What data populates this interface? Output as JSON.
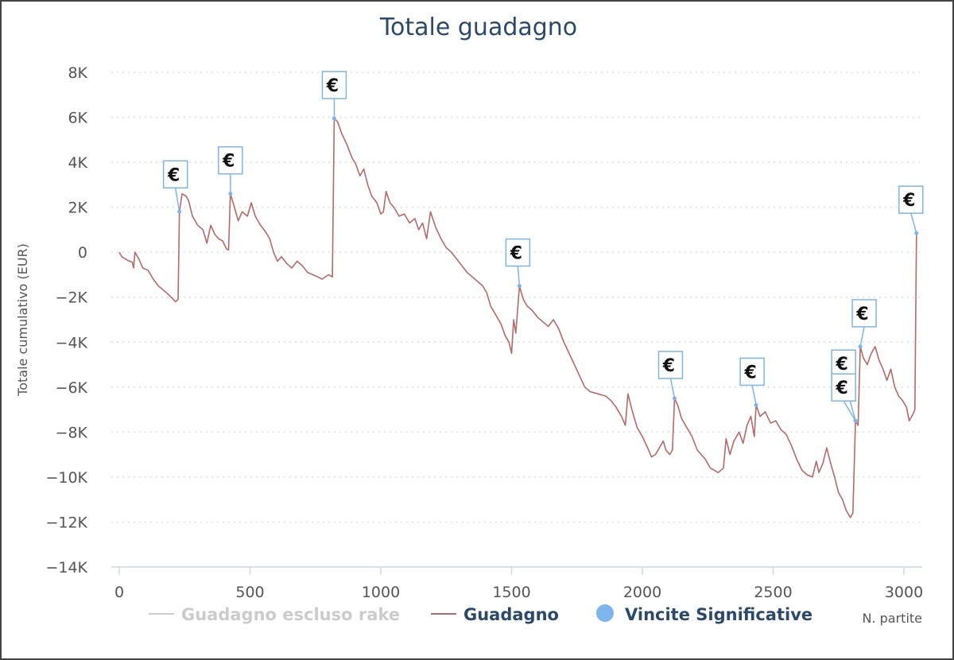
{
  "chart_data": {
    "type": "line",
    "title": "Totale guadagno",
    "xlabel": "N. partite",
    "ylabel": "Totale cumulativo (EUR)",
    "xlim": [
      0,
      3050
    ],
    "ylim": [
      -14000,
      8000
    ],
    "x_ticks": [
      0,
      500,
      1000,
      1500,
      2000,
      2500,
      3000
    ],
    "x_tick_labels": [
      "0",
      "500",
      "1000",
      "1500",
      "2000",
      "2500",
      "3000"
    ],
    "y_ticks": [
      8000,
      6000,
      4000,
      2000,
      0,
      -2000,
      -4000,
      -6000,
      -8000,
      -10000,
      -12000,
      -14000
    ],
    "y_tick_labels": [
      "8K",
      "6K",
      "4K",
      "2K",
      "0",
      "−2K",
      "−4K",
      "−6K",
      "−8K",
      "−10K",
      "−12K",
      "−14K"
    ],
    "grid": "horizontal-dotted",
    "legend_position": "bottom",
    "series": [
      {
        "name": "Guadagno escluso rake",
        "color": "#cccccc",
        "hidden": true,
        "points": []
      },
      {
        "name": "Guadagno",
        "color": "#b56a6a",
        "points": [
          [
            0,
            0
          ],
          [
            10,
            -200
          ],
          [
            30,
            -350
          ],
          [
            50,
            -450
          ],
          [
            55,
            -700
          ],
          [
            60,
            0
          ],
          [
            75,
            -300
          ],
          [
            90,
            -700
          ],
          [
            110,
            -800
          ],
          [
            130,
            -1200
          ],
          [
            150,
            -1500
          ],
          [
            170,
            -1700
          ],
          [
            190,
            -1900
          ],
          [
            215,
            -2200
          ],
          [
            225,
            -2100
          ],
          [
            230,
            1800
          ],
          [
            240,
            2600
          ],
          [
            255,
            2500
          ],
          [
            265,
            2300
          ],
          [
            280,
            1600
          ],
          [
            300,
            1200
          ],
          [
            320,
            1000
          ],
          [
            335,
            400
          ],
          [
            350,
            1200
          ],
          [
            365,
            800
          ],
          [
            380,
            600
          ],
          [
            395,
            500
          ],
          [
            410,
            150
          ],
          [
            418,
            100
          ],
          [
            425,
            2600
          ],
          [
            440,
            2000
          ],
          [
            455,
            1400
          ],
          [
            470,
            1800
          ],
          [
            490,
            1600
          ],
          [
            505,
            2200
          ],
          [
            520,
            1600
          ],
          [
            540,
            1200
          ],
          [
            560,
            900
          ],
          [
            575,
            600
          ],
          [
            590,
            0
          ],
          [
            605,
            -400
          ],
          [
            620,
            -200
          ],
          [
            640,
            -500
          ],
          [
            660,
            -700
          ],
          [
            680,
            -400
          ],
          [
            700,
            -600
          ],
          [
            720,
            -900
          ],
          [
            740,
            -1000
          ],
          [
            760,
            -1100
          ],
          [
            775,
            -1200
          ],
          [
            800,
            -1000
          ],
          [
            815,
            -1100
          ],
          [
            822,
            5950
          ],
          [
            835,
            5800
          ],
          [
            850,
            5300
          ],
          [
            870,
            4800
          ],
          [
            890,
            4200
          ],
          [
            905,
            3900
          ],
          [
            920,
            3400
          ],
          [
            935,
            3700
          ],
          [
            950,
            3000
          ],
          [
            965,
            2500
          ],
          [
            985,
            2200
          ],
          [
            1000,
            1700
          ],
          [
            1010,
            1800
          ],
          [
            1020,
            2700
          ],
          [
            1035,
            2200
          ],
          [
            1050,
            2000
          ],
          [
            1070,
            1600
          ],
          [
            1090,
            1700
          ],
          [
            1110,
            1300
          ],
          [
            1130,
            1500
          ],
          [
            1145,
            1000
          ],
          [
            1160,
            1300
          ],
          [
            1175,
            600
          ],
          [
            1190,
            1800
          ],
          [
            1210,
            1100
          ],
          [
            1230,
            600
          ],
          [
            1250,
            200
          ],
          [
            1270,
            0
          ],
          [
            1290,
            -300
          ],
          [
            1310,
            -600
          ],
          [
            1330,
            -900
          ],
          [
            1350,
            -1100
          ],
          [
            1370,
            -1300
          ],
          [
            1390,
            -1500
          ],
          [
            1405,
            -1800
          ],
          [
            1420,
            -2400
          ],
          [
            1440,
            -2800
          ],
          [
            1460,
            -3200
          ],
          [
            1475,
            -3700
          ],
          [
            1490,
            -4000
          ],
          [
            1500,
            -4500
          ],
          [
            1508,
            -3000
          ],
          [
            1516,
            -3600
          ],
          [
            1530,
            -1500
          ],
          [
            1545,
            -2100
          ],
          [
            1560,
            -2400
          ],
          [
            1580,
            -2600
          ],
          [
            1600,
            -2900
          ],
          [
            1620,
            -3100
          ],
          [
            1640,
            -3300
          ],
          [
            1660,
            -3000
          ],
          [
            1680,
            -3400
          ],
          [
            1700,
            -4000
          ],
          [
            1720,
            -4500
          ],
          [
            1740,
            -5000
          ],
          [
            1760,
            -5500
          ],
          [
            1780,
            -6000
          ],
          [
            1800,
            -6200
          ],
          [
            1830,
            -6300
          ],
          [
            1860,
            -6400
          ],
          [
            1880,
            -6600
          ],
          [
            1900,
            -6900
          ],
          [
            1920,
            -7300
          ],
          [
            1935,
            -7700
          ],
          [
            1945,
            -6300
          ],
          [
            1960,
            -7000
          ],
          [
            1980,
            -7800
          ],
          [
            2000,
            -8200
          ],
          [
            2020,
            -8700
          ],
          [
            2035,
            -9100
          ],
          [
            2050,
            -9000
          ],
          [
            2065,
            -8700
          ],
          [
            2080,
            -8400
          ],
          [
            2090,
            -8800
          ],
          [
            2105,
            -9000
          ],
          [
            2115,
            -8800
          ],
          [
            2123,
            -6500
          ],
          [
            2135,
            -6800
          ],
          [
            2150,
            -7400
          ],
          [
            2170,
            -7800
          ],
          [
            2190,
            -8200
          ],
          [
            2210,
            -8800
          ],
          [
            2240,
            -9200
          ],
          [
            2260,
            -9600
          ],
          [
            2290,
            -9800
          ],
          [
            2310,
            -9600
          ],
          [
            2320,
            -8300
          ],
          [
            2335,
            -9000
          ],
          [
            2350,
            -8400
          ],
          [
            2370,
            -8000
          ],
          [
            2385,
            -8500
          ],
          [
            2400,
            -7700
          ],
          [
            2415,
            -7300
          ],
          [
            2428,
            -8200
          ],
          [
            2435,
            -6800
          ],
          [
            2450,
            -7300
          ],
          [
            2470,
            -7100
          ],
          [
            2490,
            -7600
          ],
          [
            2510,
            -7500
          ],
          [
            2530,
            -7900
          ],
          [
            2550,
            -8100
          ],
          [
            2570,
            -8600
          ],
          [
            2590,
            -9200
          ],
          [
            2610,
            -9700
          ],
          [
            2630,
            -9900
          ],
          [
            2650,
            -10000
          ],
          [
            2665,
            -9300
          ],
          [
            2675,
            -9800
          ],
          [
            2690,
            -9400
          ],
          [
            2705,
            -8700
          ],
          [
            2720,
            -9400
          ],
          [
            2735,
            -10000
          ],
          [
            2750,
            -10700
          ],
          [
            2765,
            -11000
          ],
          [
            2780,
            -11500
          ],
          [
            2795,
            -11800
          ],
          [
            2805,
            -11600
          ],
          [
            2815,
            -7500
          ],
          [
            2825,
            -7700
          ],
          [
            2833,
            -4200
          ],
          [
            2845,
            -4700
          ],
          [
            2860,
            -5000
          ],
          [
            2875,
            -4500
          ],
          [
            2890,
            -4200
          ],
          [
            2905,
            -4800
          ],
          [
            2920,
            -5200
          ],
          [
            2935,
            -5700
          ],
          [
            2950,
            -5200
          ],
          [
            2965,
            -6000
          ],
          [
            2980,
            -6400
          ],
          [
            2995,
            -6600
          ],
          [
            3010,
            -6900
          ],
          [
            3020,
            -7500
          ],
          [
            3035,
            -7200
          ],
          [
            3042,
            -7000
          ],
          [
            3048,
            850
          ]
        ]
      },
      {
        "name": "Vincite Significative",
        "color": "#7cb5ec",
        "marker": "€",
        "points": [
          [
            230,
            1800
          ],
          [
            425,
            2600
          ],
          [
            822,
            5950
          ],
          [
            1530,
            -1500
          ],
          [
            2123,
            -6500
          ],
          [
            2435,
            -6800
          ],
          [
            2815,
            -7500
          ],
          [
            2815,
            -7500
          ],
          [
            2833,
            -4200
          ],
          [
            3048,
            850
          ]
        ]
      }
    ]
  }
}
